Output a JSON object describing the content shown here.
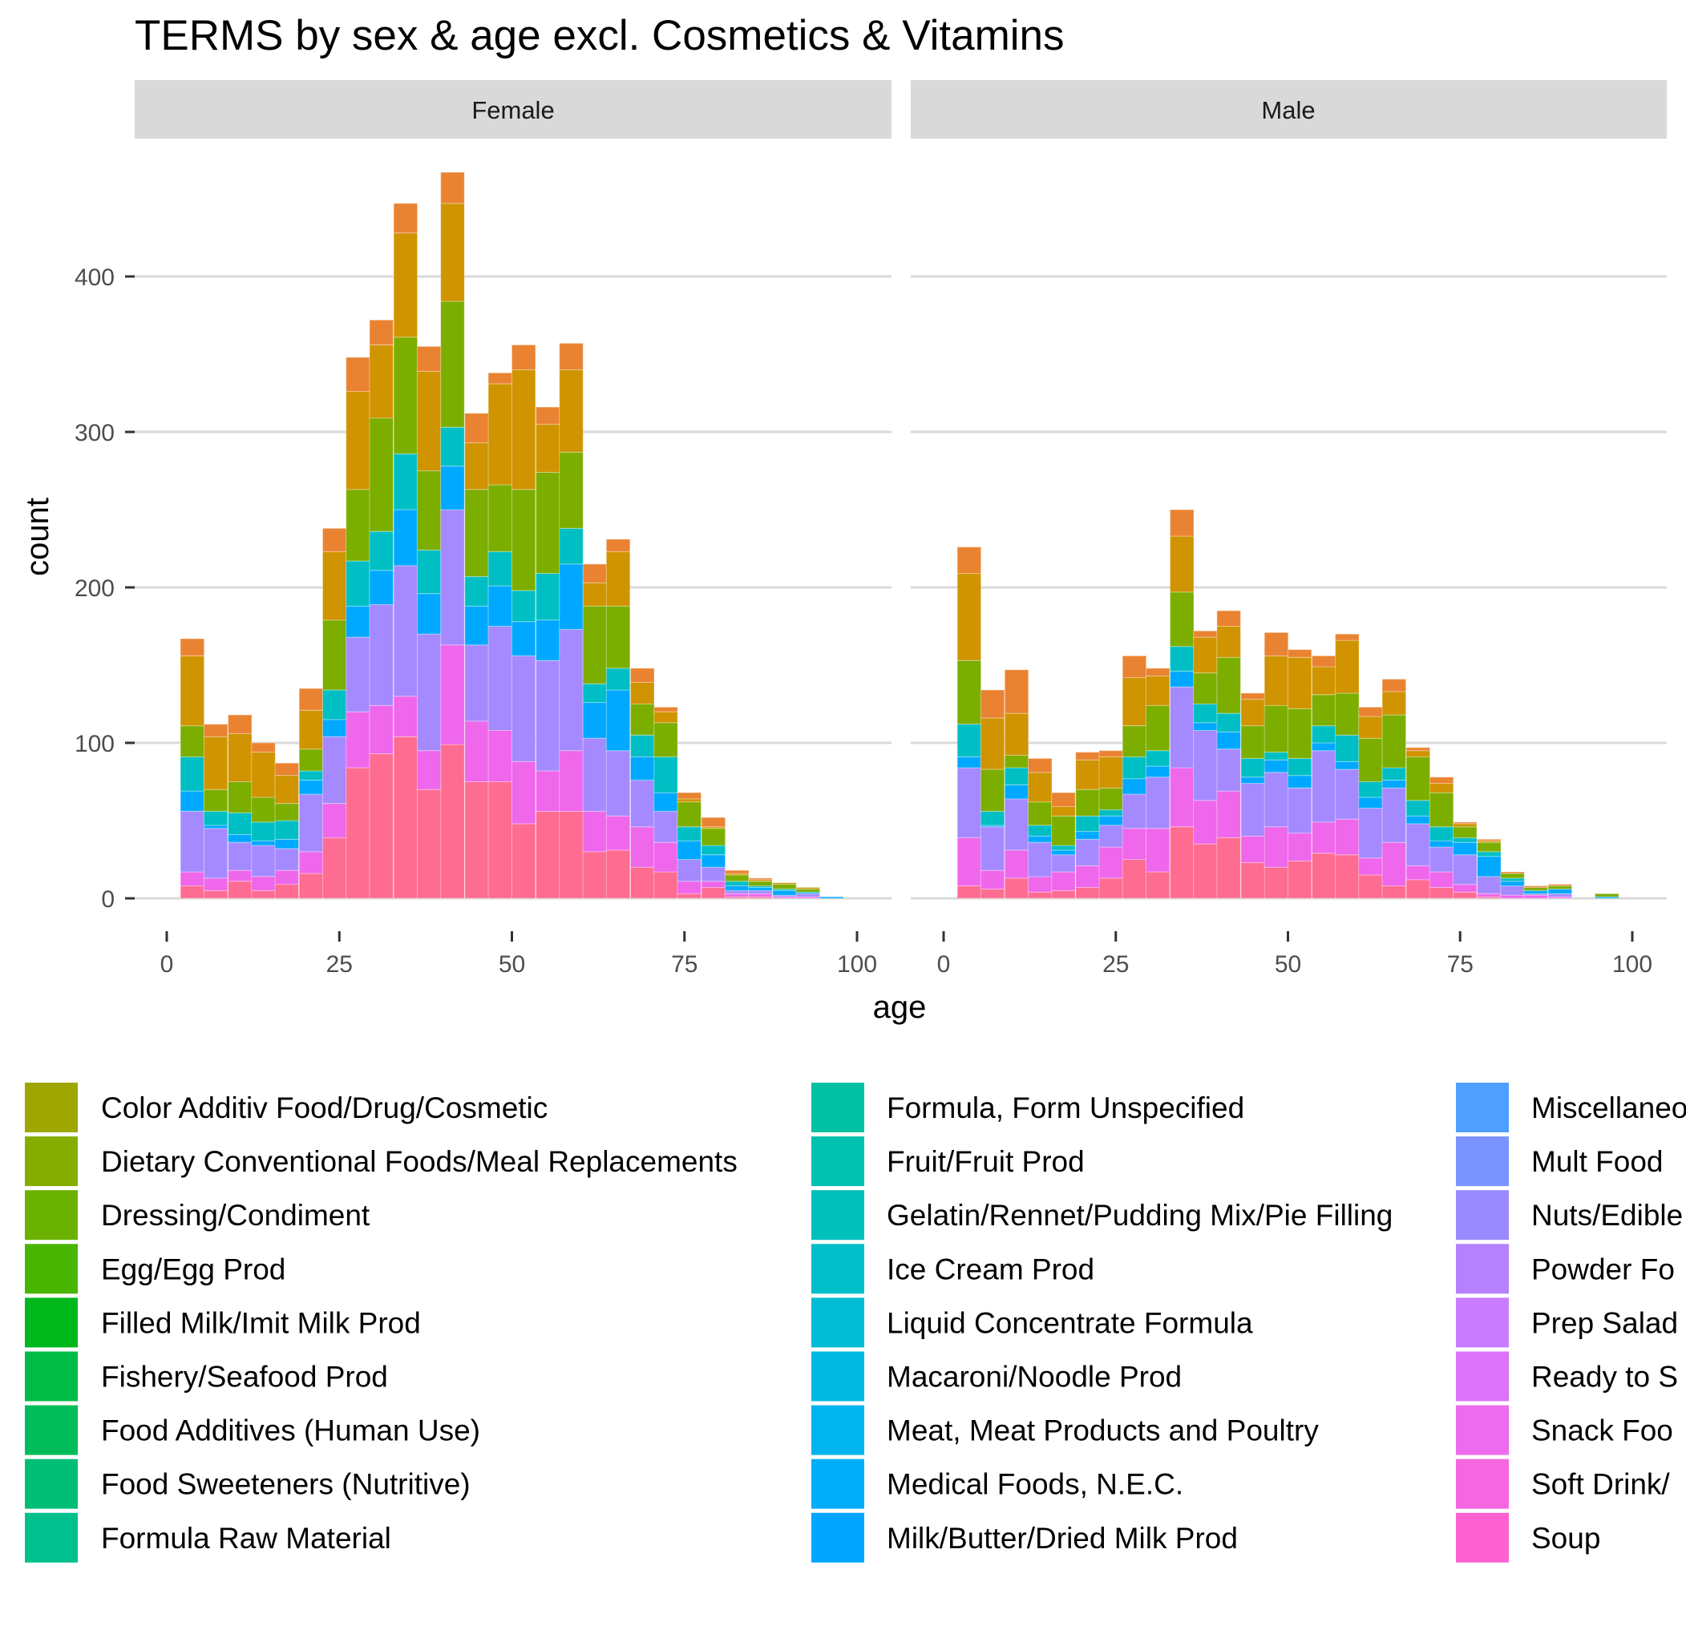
{
  "chart_data": {
    "type": "bar",
    "stacked": true,
    "title": "TERMS by sex & age excl. Cosmetics & Vitamins",
    "xlabel": "age",
    "ylabel": "count",
    "xlim": [
      0,
      100
    ],
    "ylim": [
      0,
      470
    ],
    "xticks": [
      0,
      25,
      50,
      75,
      100
    ],
    "yticks": [
      0,
      100,
      200,
      300,
      400
    ],
    "grid": "horizontal major gridlines",
    "legend_placement": "bottom",
    "bin_width": 3.43,
    "bin_centers": [
      3.7,
      7.1,
      10.6,
      14.0,
      17.4,
      20.9,
      24.3,
      27.7,
      31.1,
      34.6,
      38.0,
      41.4,
      44.9,
      48.3,
      51.7,
      55.2,
      58.6,
      62.0,
      65.4,
      68.9,
      72.3,
      75.7,
      79.2,
      82.6,
      86.0,
      89.5,
      92.9,
      96.3
    ],
    "band_colors": [
      "#FF6C91",
      "#EF67EB",
      "#A58AFF",
      "#00A9FF",
      "#00BFC4",
      "#7CAE00",
      "#CF9400",
      "#EA8331"
    ],
    "panels": [
      {
        "name": "Female",
        "series": [
          {
            "color": "#FF6C91",
            "values": [
              8,
              5,
              11,
              5,
              9,
              16,
              39,
              84,
              93,
              104,
              70,
              99,
              75,
              75,
              48,
              56,
              56,
              30,
              31,
              20,
              17,
              3,
              7,
              1,
              1,
              0,
              0,
              0
            ]
          },
          {
            "color": "#EF67EB",
            "values": [
              9,
              8,
              7,
              9,
              9,
              14,
              22,
              36,
              31,
              26,
              25,
              64,
              39,
              33,
              40,
              26,
              39,
              26,
              22,
              26,
              19,
              8,
              4,
              2,
              2,
              1,
              1,
              0
            ]
          },
          {
            "color": "#A58AFF",
            "values": [
              39,
              32,
              18,
              20,
              14,
              37,
              43,
              48,
              65,
              84,
              75,
              87,
              49,
              67,
              68,
              71,
              78,
              47,
              42,
              30,
              20,
              14,
              9,
              2,
              2,
              1,
              2,
              0
            ]
          },
          {
            "color": "#00A9FF",
            "values": [
              13,
              2,
              5,
              3,
              6,
              9,
              11,
              20,
              22,
              36,
              26,
              28,
              25,
              26,
              22,
              26,
              42,
              23,
              39,
              15,
              12,
              12,
              8,
              3,
              2,
              3,
              1,
              1
            ]
          },
          {
            "color": "#00BFC4",
            "values": [
              22,
              9,
              14,
              12,
              12,
              6,
              19,
              29,
              25,
              36,
              28,
              25,
              19,
              22,
              20,
              30,
              23,
              12,
              14,
              14,
              23,
              9,
              6,
              3,
              1,
              1,
              0,
              0
            ]
          },
          {
            "color": "#7CAE00",
            "values": [
              20,
              14,
              20,
              16,
              11,
              14,
              45,
              46,
              73,
              75,
              51,
              81,
              56,
              43,
              65,
              65,
              49,
              50,
              40,
              20,
              22,
              16,
              11,
              4,
              3,
              3,
              2,
              0
            ]
          },
          {
            "color": "#CF9400",
            "values": [
              45,
              34,
              31,
              29,
              18,
              25,
              44,
              63,
              47,
              67,
              64,
              63,
              30,
              65,
              77,
              31,
              53,
              15,
              35,
              14,
              7,
              2,
              1,
              1,
              1,
              1,
              1,
              0
            ]
          },
          {
            "color": "#EA8331",
            "values": [
              11,
              8,
              12,
              6,
              8,
              14,
              15,
              22,
              16,
              19,
              16,
              20,
              19,
              7,
              16,
              11,
              17,
              12,
              8,
              9,
              3,
              4,
              6,
              2,
              1,
              0,
              0,
              0
            ]
          }
        ]
      },
      {
        "name": "Male",
        "series": [
          {
            "color": "#FF6C91",
            "values": [
              8,
              6,
              13,
              4,
              5,
              7,
              13,
              25,
              17,
              46,
              35,
              39,
              23,
              20,
              24,
              29,
              28,
              15,
              8,
              12,
              7,
              4,
              1,
              0,
              0,
              0,
              0,
              0
            ]
          },
          {
            "color": "#EF67EB",
            "values": [
              31,
              12,
              18,
              10,
              12,
              14,
              20,
              20,
              28,
              38,
              28,
              30,
              17,
              26,
              18,
              20,
              23,
              11,
              28,
              9,
              10,
              5,
              2,
              2,
              2,
              1,
              0,
              0
            ]
          },
          {
            "color": "#A58AFF",
            "values": [
              45,
              28,
              33,
              22,
              11,
              17,
              14,
              22,
              33,
              52,
              45,
              27,
              34,
              35,
              29,
              46,
              32,
              32,
              35,
              27,
              16,
              19,
              11,
              6,
              1,
              2,
              0,
              0
            ]
          },
          {
            "color": "#00A9FF",
            "values": [
              7,
              1,
              9,
              4,
              3,
              5,
              6,
              10,
              7,
              10,
              5,
              11,
              4,
              8,
              8,
              5,
              5,
              7,
              5,
              5,
              4,
              8,
              13,
              3,
              2,
              3,
              0,
              1
            ]
          },
          {
            "color": "#00BFC4",
            "values": [
              21,
              9,
              11,
              7,
              3,
              10,
              4,
              14,
              10,
              16,
              12,
              12,
              12,
              5,
              11,
              11,
              17,
              10,
              8,
              10,
              9,
              3,
              3,
              2,
              0,
              0,
              0,
              0
            ]
          },
          {
            "color": "#7CAE00",
            "values": [
              41,
              27,
              8,
              15,
              19,
              17,
              14,
              20,
              29,
              35,
              20,
              36,
              21,
              30,
              32,
              20,
              27,
              28,
              34,
              28,
              22,
              7,
              6,
              3,
              2,
              2,
              0,
              2
            ]
          },
          {
            "color": "#CF9400",
            "values": [
              56,
              33,
              27,
              19,
              6,
              19,
              20,
              31,
              19,
              36,
              23,
              20,
              17,
              32,
              33,
              18,
              34,
              14,
              15,
              4,
              6,
              2,
              1,
              0,
              0,
              0,
              0,
              0
            ]
          },
          {
            "color": "#EA8331",
            "values": [
              17,
              18,
              28,
              9,
              9,
              5,
              4,
              14,
              5,
              17,
              4,
              10,
              4,
              15,
              5,
              7,
              4,
              6,
              8,
              2,
              4,
              1,
              1,
              1,
              1,
              1,
              0,
              0
            ]
          }
        ]
      }
    ],
    "legend": {
      "columns": [
        [
          {
            "label": "Color Additiv Food/Drug/Cosmetic",
            "color": "#9DA700"
          },
          {
            "label": "Dietary Conventional Foods/Meal Replacements",
            "color": "#85AD00"
          },
          {
            "label": "Dressing/Condiment",
            "color": "#6BB100"
          },
          {
            "label": "Egg/Egg Prod",
            "color": "#48B500"
          },
          {
            "label": "Filled Milk/Imit Milk Prod",
            "color": "#00B81C"
          },
          {
            "label": "Fishery/Seafood Prod",
            "color": "#00BB45"
          },
          {
            "label": "Food Additives (Human Use)",
            "color": "#00BC5A"
          },
          {
            "label": "Food Sweeteners (Nutritive)",
            "color": "#00BE75"
          },
          {
            "label": "Formula Raw Material",
            "color": "#00C08D"
          }
        ],
        [
          {
            "label": "Formula, Form Unspecified",
            "color": "#00C1A1"
          },
          {
            "label": "Fruit/Fruit Prod",
            "color": "#00C1B0"
          },
          {
            "label": "Gelatin/Rennet/Pudding Mix/Pie Filling",
            "color": "#00C0BC"
          },
          {
            "label": "Ice Cream Prod",
            "color": "#00BFC8"
          },
          {
            "label": "Liquid Concentrate Formula",
            "color": "#00BCD5"
          },
          {
            "label": "Macaroni/Noodle Prod",
            "color": "#00B9E2"
          },
          {
            "label": "Meat, Meat Products and Poultry",
            "color": "#00B4EF"
          },
          {
            "label": "Medical Foods, N.E.C.",
            "color": "#00ADFA"
          },
          {
            "label": "Milk/Butter/Dried Milk Prod",
            "color": "#00A6FF"
          }
        ],
        [
          {
            "label": "Miscellaneo",
            "color": "#4F9FFF"
          },
          {
            "label": "Mult Food",
            "color": "#7B93FF"
          },
          {
            "label": "Nuts/Edible",
            "color": "#9A8AFF"
          },
          {
            "label": "Powder Fo",
            "color": "#B581FF"
          },
          {
            "label": "Prep Salad",
            "color": "#C97CFF"
          },
          {
            "label": "Ready to S",
            "color": "#DC73F8"
          },
          {
            "label": "Snack Foo",
            "color": "#EC6BEE"
          },
          {
            "label": "Soft Drink/",
            "color": "#F766E1"
          },
          {
            "label": "Soup",
            "color": "#FF61D0"
          }
        ]
      ]
    }
  }
}
